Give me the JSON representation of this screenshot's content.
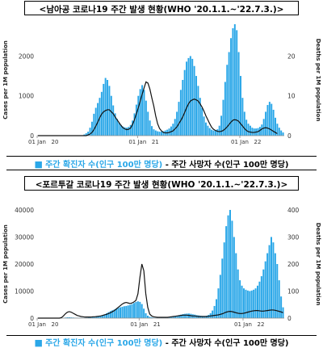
{
  "chart_data": [
    {
      "type": "bar",
      "title": "<남아공 코로나19 주간 발생 현황(WHO '20.1.1.~'22.7.3.)>",
      "ylabel": "Cases per 1M population",
      "y2label": "Deaths per 1M population",
      "ylim": [
        0,
        2800
      ],
      "y2lim": [
        0,
        28
      ],
      "yticks": [
        "0",
        "1000",
        "2000"
      ],
      "y2ticks": [
        "0",
        "10",
        "20"
      ],
      "xticks": [
        {
          "year": "20",
          "label": "01 Jan",
          "week": 0
        },
        {
          "year": "21",
          "label": "01 Jan",
          "week": 52
        },
        {
          "year": "22",
          "label": "01 Jan",
          "week": 105
        }
      ],
      "series": [
        {
          "type": "bar",
          "color": "#2aa7e8",
          "values": [
            0,
            0,
            0,
            0,
            0,
            0,
            0,
            0,
            0,
            0,
            0,
            0,
            0,
            0,
            0,
            0,
            0,
            0,
            0,
            0,
            0,
            0,
            0,
            0,
            30,
            60,
            100,
            200,
            350,
            550,
            700,
            820,
            950,
            1100,
            1300,
            1450,
            1400,
            1250,
            1000,
            760,
            560,
            420,
            330,
            270,
            230,
            210,
            200,
            220,
            270,
            380,
            560,
            780,
            1000,
            1170,
            1270,
            1150,
            880,
            600,
            380,
            240,
            160,
            130,
            110,
            100,
            100,
            110,
            130,
            150,
            180,
            230,
            300,
            420,
            600,
            850,
            1150,
            1400,
            1650,
            1860,
            1950,
            2000,
            1930,
            1750,
            1500,
            1250,
            950,
            700,
            480,
            330,
            250,
            190,
            150,
            130,
            130,
            160,
            250,
            500,
            900,
            1350,
            1780,
            2100,
            2450,
            2700,
            2900,
            2650,
            2100,
            1500,
            950,
            600,
            400,
            300,
            250,
            200,
            180,
            180,
            190,
            220,
            280,
            420,
            600,
            770,
            850,
            800,
            650,
            450,
            300,
            200,
            130,
            80
          ]
        },
        {
          "type": "line",
          "color": "#111111",
          "values": [
            0,
            0,
            0,
            0,
            0,
            0,
            0,
            0,
            0,
            0,
            0,
            0,
            0,
            0,
            0,
            0,
            0,
            0,
            0,
            0,
            0,
            0,
            0,
            0,
            0,
            0,
            0.2,
            0.4,
            0.8,
            1.5,
            2.4,
            3.4,
            4.5,
            5.4,
            6,
            6.3,
            6.5,
            6.5,
            6,
            5.5,
            4.7,
            4,
            3.3,
            2.6,
            2,
            1.7,
            1.5,
            1.6,
            1.9,
            2.8,
            4,
            5.5,
            7,
            8.7,
            10.4,
            12,
            13.5,
            13.2,
            11.7,
            9.5,
            7.5,
            5,
            3,
            1.8,
            1.2,
            0.8,
            0.7,
            0.7,
            0.8,
            1,
            1.2,
            1.7,
            2.2,
            3,
            3.8,
            4.7,
            5.8,
            7,
            8,
            8.7,
            9,
            9.2,
            9,
            8.7,
            8,
            7.2,
            6.2,
            5,
            4,
            3,
            2.1,
            1.6,
            1.3,
            1.1,
            1,
            1.1,
            1.3,
            1.7,
            2.2,
            2.8,
            3.4,
            3.9,
            4,
            3.9,
            3.6,
            3,
            2.4,
            1.8,
            1.3,
            1,
            0.9,
            0.8,
            0.8,
            0.9,
            1,
            1.3,
            1.7,
            1.9,
            2,
            1.9,
            1.7,
            1.4,
            1.1,
            0.8,
            0.5
          ]
        }
      ],
      "legend": {
        "marker": "■",
        "cases": "주간 확진자 수(인구 100만 명당)",
        "sep": " - ",
        "deaths": "주간 사망자 수(인구 100만 명당)"
      }
    },
    {
      "type": "bar",
      "title": "<포르투갈 코로나19 주간 발생 현황(WHO '20.1.1.~'22.7.3.)>",
      "ylabel": "Cases per 1M population",
      "y2label": "Deaths per 1M population",
      "ylim": [
        0,
        40000
      ],
      "y2lim": [
        0,
        400
      ],
      "yticks": [
        "0",
        "10000",
        "20000",
        "30000",
        "40000"
      ],
      "y2ticks": [
        "0",
        "100",
        "200",
        "300",
        "400"
      ],
      "xticks": [
        {
          "year": "20",
          "label": "01 Jan",
          "week": 0
        },
        {
          "year": "21",
          "label": "01 Jan",
          "week": 52
        },
        {
          "year": "22",
          "label": "01 Jan",
          "week": 105
        }
      ],
      "series": [
        {
          "type": "bar",
          "color": "#2aa7e8",
          "values": [
            0,
            0,
            0,
            0,
            0,
            0,
            0,
            0,
            0,
            0,
            0,
            0,
            0,
            100,
            200,
            300,
            300,
            250,
            200,
            150,
            150,
            150,
            150,
            150,
            150,
            200,
            300,
            400,
            500,
            600,
            700,
            800,
            900,
            1100,
            1400,
            1800,
            2200,
            2600,
            2900,
            3200,
            3500,
            3800,
            4000,
            4200,
            4400,
            4500,
            4700,
            4900,
            5200,
            5600,
            6000,
            6200,
            6000,
            5200,
            3500,
            1800,
            900,
            500,
            300,
            200,
            150,
            150,
            150,
            180,
            200,
            220,
            250,
            300,
            400,
            500,
            700,
            900,
            1100,
            1300,
            1500,
            1600,
            1700,
            1700,
            1600,
            1400,
            1300,
            1100,
            1000,
            900,
            800,
            800,
            900,
            1200,
            1800,
            2800,
            4500,
            7000,
            11000,
            16000,
            22000,
            28000,
            34000,
            38000,
            40000,
            36000,
            30000,
            24000,
            18000,
            14000,
            12000,
            11000,
            10500,
            10200,
            10000,
            10200,
            10500,
            11000,
            12000,
            13500,
            15500,
            18000,
            21000,
            24000,
            27000,
            30000,
            28000,
            24000,
            20000,
            14000,
            8000,
            4000
          ]
        },
        {
          "type": "line",
          "color": "#111111",
          "values": [
            0,
            0,
            0,
            0,
            0,
            0,
            0,
            0,
            0,
            0,
            0,
            0,
            2,
            8,
            16,
            22,
            24,
            22,
            18,
            14,
            10,
            8,
            6,
            5,
            4,
            4,
            4,
            4,
            5,
            5,
            6,
            7,
            8,
            10,
            12,
            14,
            17,
            20,
            24,
            28,
            34,
            40,
            46,
            52,
            56,
            58,
            56,
            54,
            56,
            60,
            66,
            90,
            150,
            200,
            175,
            90,
            40,
            15,
            8,
            5,
            4,
            3,
            3,
            3,
            3,
            3,
            3,
            4,
            5,
            6,
            7,
            8,
            9,
            10,
            11,
            11,
            11,
            10,
            9,
            8,
            8,
            7,
            6,
            6,
            6,
            6,
            6,
            7,
            8,
            9,
            10,
            11,
            12,
            14,
            16,
            19,
            22,
            24,
            25,
            24,
            22,
            20,
            18,
            17,
            17,
            18,
            20,
            22,
            24,
            26,
            27,
            28,
            28,
            27,
            26,
            26,
            27,
            28,
            29,
            30,
            30,
            29,
            27,
            25,
            23,
            20
          ]
        }
      ],
      "legend": {
        "marker": "■",
        "cases": "주간 확진자 수(인구 100만 명당)",
        "sep": " - ",
        "deaths": "주간 사망자 수(인구 100만 명당)"
      }
    }
  ]
}
